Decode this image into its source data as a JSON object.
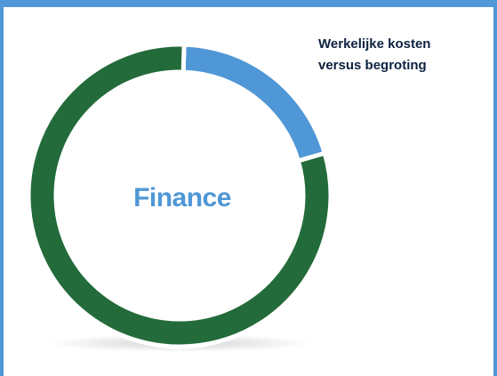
{
  "chart_data": {
    "type": "donut",
    "title": [
      "Werkelijke kosten",
      "versus begroting"
    ],
    "center_label": "Finance",
    "values": [
      20,
      80
    ],
    "colors": [
      "#4f97d6",
      "#236b3a"
    ]
  }
}
